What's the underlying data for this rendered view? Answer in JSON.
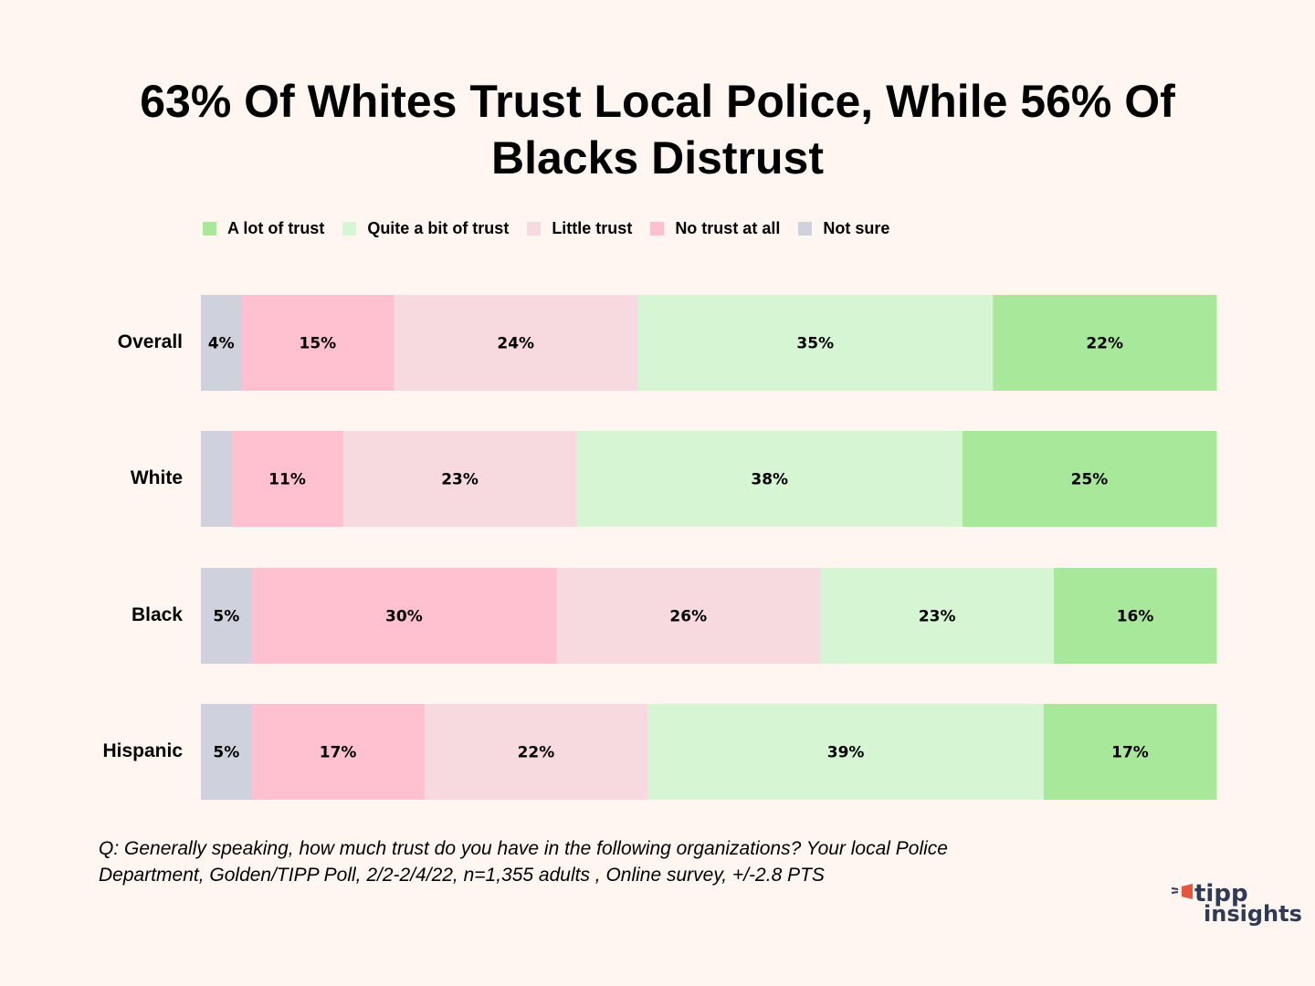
{
  "title_line1": "63% Of Whites Trust Local Police, While 56% Of",
  "title_line2": "Blacks Distrust",
  "note_line1": "Q:  Generally speaking, how much trust do you have in the following organizations?  Your local Police",
  "note_line2": "Department, Golden/TIPP Poll, 2/2-2/4/22, n=1,355 adults , Online survey, +/-2.8 PTS",
  "logo": {
    "line1": "tipp",
    "line2": "insights"
  },
  "chart_data": {
    "type": "bar",
    "orientation": "horizontal-stacked-100",
    "title": "63% Of Whites Trust Local Police, While 56% Of Blacks Distrust",
    "categories": [
      "Overall",
      "White",
      "Black",
      "Hispanic"
    ],
    "legend_position": "top",
    "legend": [
      "A lot of trust",
      "Quite a bit of trust",
      "Little trust",
      "No trust at all",
      "Not sure"
    ],
    "stack_order": [
      "Not sure",
      "No trust at all",
      "Little trust",
      "Quite a bit of trust",
      "A lot of trust"
    ],
    "colors": {
      "A lot of trust": "#a8e89a",
      "Quite a bit of trust": "#d6f5d3",
      "Little trust": "#f7d9e0",
      "No trust at all": "#ffc0cf",
      "Not sure": "#cfd1dd"
    },
    "series": [
      {
        "name": "Not sure",
        "values": [
          4,
          3,
          5,
          5
        ],
        "labels": [
          "4%",
          "",
          "5%",
          "5%"
        ]
      },
      {
        "name": "No trust at all",
        "values": [
          15,
          11,
          30,
          17
        ],
        "labels": [
          "15%",
          "11%",
          "30%",
          "17%"
        ]
      },
      {
        "name": "Little trust",
        "values": [
          24,
          23,
          26,
          22
        ],
        "labels": [
          "24%",
          "23%",
          "26%",
          "22%"
        ]
      },
      {
        "name": "Quite a bit of trust",
        "values": [
          35,
          38,
          23,
          39
        ],
        "labels": [
          "35%",
          "38%",
          "23%",
          "39%"
        ]
      },
      {
        "name": "A lot of trust",
        "values": [
          22,
          25,
          16,
          17
        ],
        "labels": [
          "22%",
          "25%",
          "16%",
          "17%"
        ]
      }
    ],
    "xlim": [
      0,
      100
    ],
    "grid": false
  }
}
